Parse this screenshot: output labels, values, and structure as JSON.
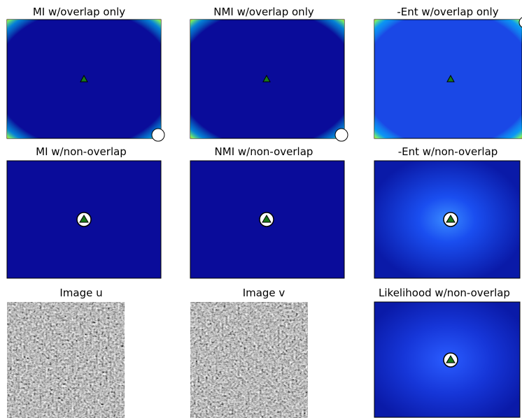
{
  "panels": [
    {
      "title": "MI w/overlap only"
    },
    {
      "title": "NMI w/overlap only"
    },
    {
      "title": "-Ent w/overlap only"
    },
    {
      "title": "MI w/non-overlap"
    },
    {
      "title": "NMI w/non-overlap"
    },
    {
      "title": "-Ent w/non-overlap"
    },
    {
      "title": "Image u"
    },
    {
      "title": "Image v"
    },
    {
      "title": "Likelihood w/non-overlap"
    }
  ]
}
